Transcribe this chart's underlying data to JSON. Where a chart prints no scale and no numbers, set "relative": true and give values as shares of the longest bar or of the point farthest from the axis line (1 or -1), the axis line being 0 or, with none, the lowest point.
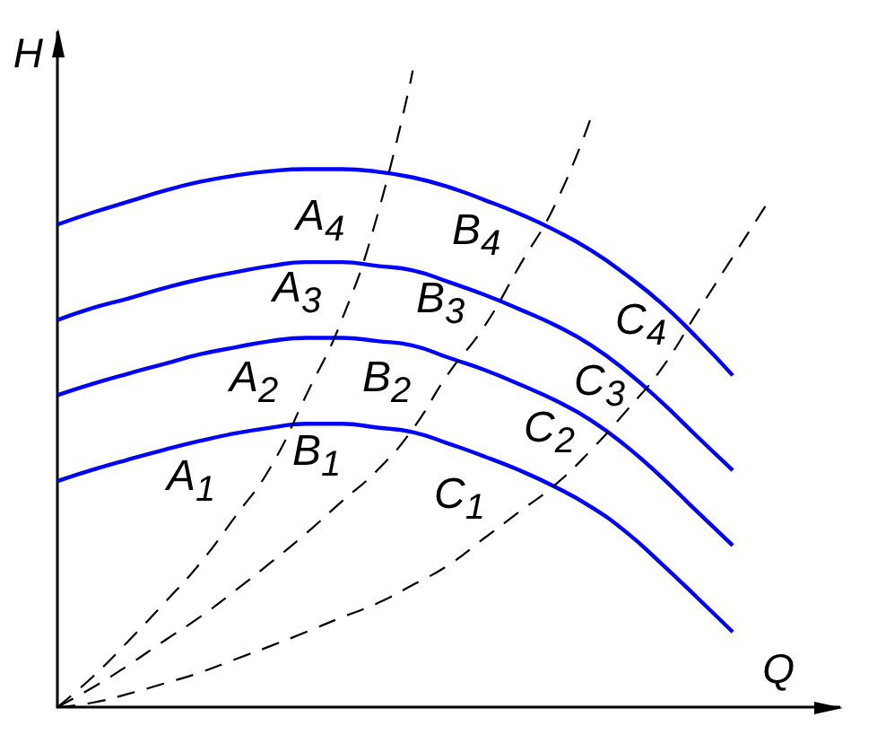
{
  "chart_data": {
    "type": "line",
    "relative": true,
    "xlabel": "Q",
    "ylabel": "H",
    "marker": "none",
    "line_style": "solid",
    "categories": [
      null,
      null,
      null,
      null,
      null,
      null,
      null,
      null,
      null,
      null,
      null,
      null,
      null,
      null,
      null,
      null,
      null,
      null,
      null,
      null,
      null,
      null,
      null
    ],
    "annotations": [
      "A$_{1}$",
      "B$_{1}$",
      "C$_{1}$",
      "A$_{2}$",
      "B$_{2}$",
      "C$_{2}$",
      "A$_{3}$",
      "B$_{3}$",
      "C$_{3}$",
      "A$_{4}$",
      "B$_{4}$",
      "C$_{4}$"
    ],
    "series": [
      {
        "color": "#0000ff",
        "values": [
          0.355,
          0.373,
          0.389,
          0.404,
          0.418,
          0.43,
          0.439,
          0.445,
          0.445,
          0.439,
          0.432,
          0.414,
          0.394,
          0.372,
          0.346,
          0.315,
          0.275,
          0.225,
          0.172,
          0.118,
          null,
          null,
          null
        ]
      },
      {
        "color": "#0000ff",
        "values": [
          0.49,
          0.508,
          0.524,
          0.539,
          0.554,
          0.565,
          0.575,
          0.58,
          0.58,
          0.575,
          0.568,
          0.549,
          0.53,
          0.507,
          0.482,
          0.451,
          0.41,
          0.361,
          0.307,
          0.254,
          null,
          null,
          null
        ]
      },
      {
        "color": "#0000ff",
        "values": [
          0.608,
          0.627,
          0.642,
          0.658,
          0.672,
          0.683,
          0.693,
          0.699,
          0.699,
          0.693,
          0.686,
          0.668,
          0.648,
          0.625,
          0.6,
          0.569,
          0.528,
          0.479,
          0.425,
          0.372,
          null,
          null,
          null
        ]
      },
      {
        "color": "#0000ff",
        "values": [
          0.758,
          0.777,
          0.794,
          0.811,
          0.825,
          0.835,
          0.842,
          0.845,
          0.845,
          0.841,
          0.832,
          0.817,
          0.797,
          0.775,
          0.749,
          0.718,
          0.679,
          0.634,
          0.58,
          0.521,
          null,
          null,
          null
        ]
      },
      {
        "color": "#000000",
        "line_style": "dashed",
        "values": [
          0,
          0.048,
          0.104,
          0.163,
          0.225,
          0.299,
          0.377,
          0.49,
          0.608,
          0.772,
          1,
          null,
          null,
          null,
          null,
          null,
          null,
          null,
          null,
          null,
          null,
          null,
          null
        ]
      },
      {
        "color": "#000000",
        "line_style": "dashed",
        "values": [
          0,
          0.031,
          0.066,
          0.104,
          0.141,
          0.183,
          0.227,
          0.273,
          0.323,
          0.372,
          0.437,
          0.524,
          0.597,
          0.693,
          0.789,
          0.924,
          null,
          null,
          null,
          null,
          null,
          null,
          null
        ]
      },
      {
        "color": "#000000",
        "line_style": "dashed",
        "values": [
          0,
          0.007,
          0.021,
          0.037,
          0.054,
          0.075,
          0.096,
          0.118,
          0.141,
          0.163,
          0.192,
          0.223,
          0.265,
          0.307,
          0.349,
          0.403,
          0.465,
          0.532,
          0.62,
          0.707,
          0.794,
          null,
          null
        ]
      }
    ]
  }
}
